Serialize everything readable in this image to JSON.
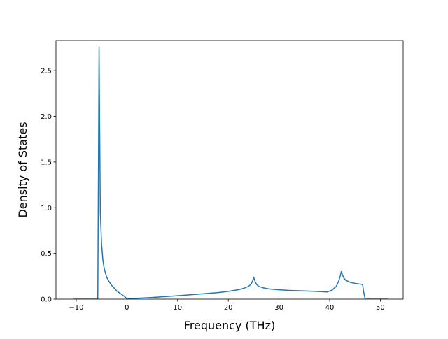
{
  "chart_data": {
    "type": "line",
    "title": "",
    "xlabel": "Frequency (THz)",
    "ylabel": "Density of States",
    "xlim": [
      -14,
      54.5
    ],
    "ylim": [
      0,
      2.83
    ],
    "xticks": [
      -10,
      0,
      10,
      20,
      30,
      40,
      50
    ],
    "xtick_labels": [
      "−10",
      "0",
      "10",
      "20",
      "30",
      "40",
      "50"
    ],
    "yticks": [
      0,
      0.5,
      1.0,
      1.5,
      2.0,
      2.5
    ],
    "ytick_labels": [
      "0.0",
      "0.5",
      "1.0",
      "1.5",
      "2.0",
      "2.5"
    ],
    "grid": false,
    "legend": "none",
    "series": [
      {
        "color": "#1f77b4",
        "x": [
          -10.5,
          -6.0,
          -5.75,
          -5.5,
          -5.25,
          -5.0,
          -4.75,
          -4.5,
          -4.0,
          -3.5,
          -3.0,
          -2.5,
          -2.0,
          -1.5,
          -1.0,
          -0.5,
          0.0,
          2,
          5,
          10,
          15,
          18,
          20,
          22,
          23,
          24,
          24.5,
          24.8,
          25.0,
          25.3,
          25.6,
          26,
          27,
          28,
          30,
          32,
          35,
          38,
          39.5,
          40.5,
          41.3,
          41.8,
          42.1,
          42.3,
          42.5,
          42.8,
          43.2,
          44,
          45,
          46.2,
          46.5,
          46.7,
          47,
          51.5
        ],
        "y": [
          0,
          0,
          0,
          2.76,
          0.95,
          0.6,
          0.43,
          0.34,
          0.24,
          0.19,
          0.15,
          0.12,
          0.09,
          0.07,
          0.05,
          0.03,
          0.005,
          0.01,
          0.018,
          0.037,
          0.058,
          0.072,
          0.085,
          0.103,
          0.118,
          0.14,
          0.165,
          0.2,
          0.24,
          0.19,
          0.16,
          0.14,
          0.122,
          0.112,
          0.102,
          0.096,
          0.09,
          0.083,
          0.078,
          0.1,
          0.14,
          0.2,
          0.255,
          0.305,
          0.27,
          0.23,
          0.205,
          0.185,
          0.172,
          0.163,
          0.16,
          0.08,
          0,
          0
        ]
      }
    ]
  }
}
